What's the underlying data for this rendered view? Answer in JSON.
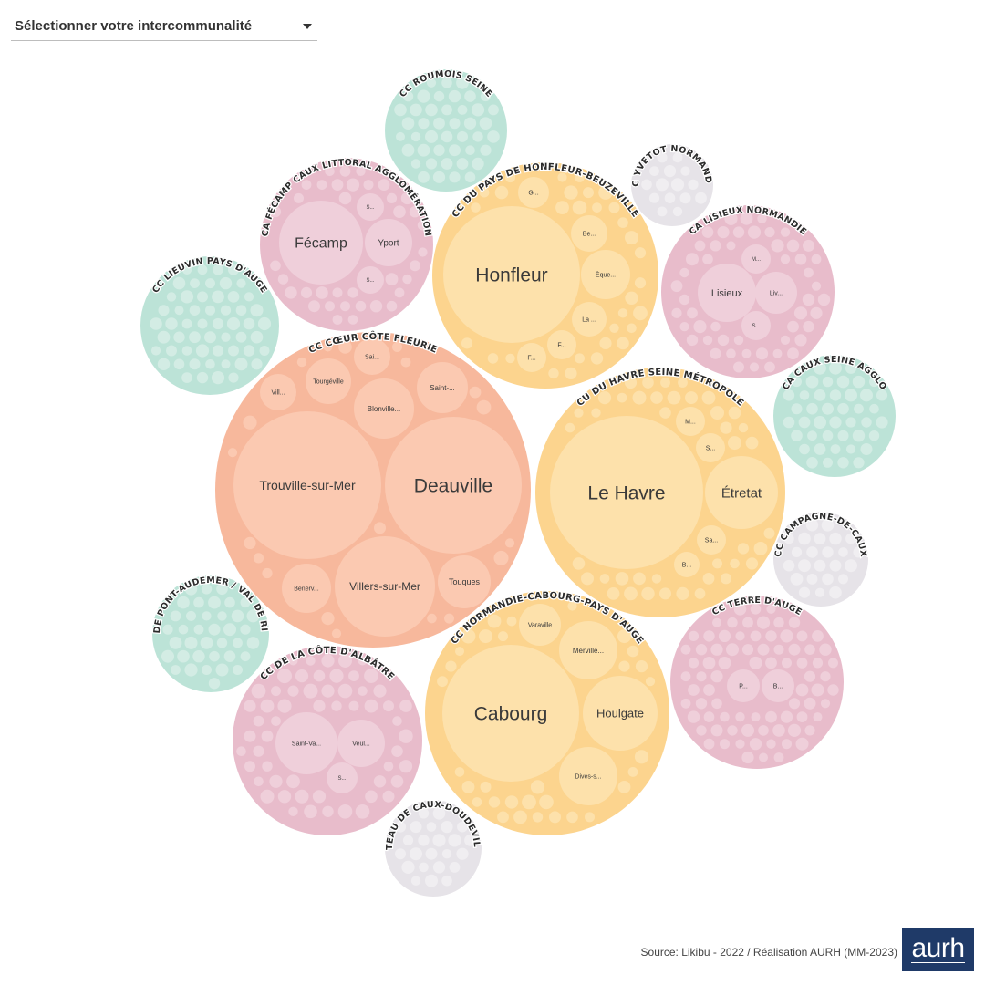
{
  "selector": {
    "label": "Sélectionner votre intercommunalité"
  },
  "footer": {
    "source": "Source: Likibu - 2022 / Réalisation AURH (MM-2023)",
    "logo_text": "aurh"
  },
  "colors": {
    "salmon": "#f7b89c",
    "salmon_inner": "#fbc9b1",
    "orange": "#fcd48e",
    "orange_inner": "#fde1ab",
    "pink": "#e8bccb",
    "pink_inner": "#efcfda",
    "green": "#bce3d7",
    "green_inner": "#d3ece4",
    "grey": "#e6e3e8",
    "grey_inner": "#f0eef1"
  },
  "chart_data": {
    "type": "packed-bubble",
    "groups": [
      {
        "name": "CC CŒUR CÔTE FLEURIE",
        "color": "salmon",
        "cities": [
          "Deauville",
          "Trouville-sur-Mer",
          "Villers-sur-Mer",
          "Touques",
          "Benerv...",
          "Blonville...",
          "Tourgéville",
          "Saint-...",
          "Vill...",
          "Sai..."
        ]
      },
      {
        "name": "CU DU HAVRE SEINE MÉTROPOLE",
        "color": "orange",
        "cities": [
          "Le Havre",
          "Étretat",
          "M...",
          "S...",
          "Sa...",
          "B..."
        ]
      },
      {
        "name": "CC DU PAYS DE HONFLEUR-BEUZEVILLE",
        "color": "orange",
        "cities": [
          "Honfleur",
          "G...",
          "Be...",
          "Èque...",
          "La ...",
          "F...",
          "F..."
        ]
      },
      {
        "name": "CC NORMANDIE-CABOURG-PAYS D'AUGE",
        "color": "orange",
        "cities": [
          "Cabourg",
          "Houlgate",
          "Varaville",
          "Merville...",
          "Dives-s..."
        ]
      },
      {
        "name": "CA FÉCAMP CAUX LITTORAL AGGLOMÉRATION",
        "color": "pink",
        "cities": [
          "Fécamp",
          "Yport",
          "S...",
          "S..."
        ]
      },
      {
        "name": "CA LISIEUX NORMANDIE",
        "color": "pink",
        "cities": [
          "Lisieux",
          "Liv...",
          "M...",
          "S..."
        ]
      },
      {
        "name": "CC TERRE D'AUGE",
        "color": "pink",
        "cities": [
          "P...",
          "B..."
        ]
      },
      {
        "name": "CC DE LA CÔTE D'ALBÂTRE",
        "color": "pink",
        "cities": [
          "Saint-Va...",
          "Veul...",
          "S..."
        ]
      },
      {
        "name": "CC ROUMOIS SEINE",
        "color": "green",
        "cities": []
      },
      {
        "name": "CC LIEUVIN PAYS D'AUGE",
        "color": "green",
        "cities": []
      },
      {
        "name": "CA CAUX SEINE AGGLO",
        "color": "green",
        "cities": []
      },
      {
        "name": "CC DE PONT-AUDEMER / VAL DE RISLE",
        "color": "green",
        "cities": []
      },
      {
        "name": "CC YVETOT NORMANDIE",
        "color": "grey",
        "cities": []
      },
      {
        "name": "CC CAMPAGNE-DE-CAUX",
        "color": "grey",
        "cities": []
      },
      {
        "name": "CC PLATEAU DE CAUX-DOUDEVILLE-YE...",
        "color": "grey",
        "cities": []
      }
    ]
  }
}
